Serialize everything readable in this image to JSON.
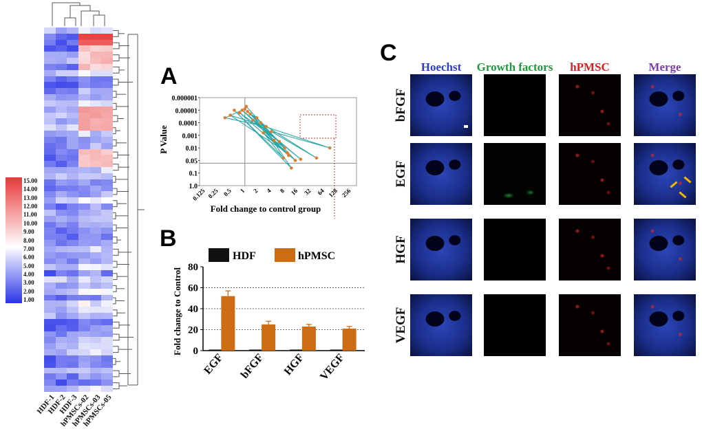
{
  "panels": {
    "a": "A",
    "b": "B",
    "c": "C"
  },
  "heatmap": {
    "samples": [
      "HDF-1",
      "HDF-2",
      "HDF-3",
      "hPMSCs-02",
      "hPMSCs-03",
      "hPMSCs-05"
    ],
    "legend_ticks": [
      "15.00",
      "14.00",
      "13.00",
      "12.00",
      "11.00",
      "10.00",
      "9.00",
      "8.00",
      "7.00",
      "6.00",
      "5.00",
      "4.00",
      "3.00",
      "2.00",
      "1.00"
    ],
    "colors": {
      "low": "#2a35e8",
      "mid": "#ffffff",
      "high": "#e83a3a"
    },
    "row_count": 60
  },
  "volcano": {
    "ylabel": "P Value",
    "xlabel": "Fold change to control group",
    "y_ticks": [
      "0.000001",
      "0.00001",
      "0.0001",
      "0.001",
      "0.01",
      "0.05",
      "0.1",
      "1.0"
    ],
    "x_ticks": [
      "0.125",
      "0.25",
      "0.5",
      "1",
      "2",
      "4",
      "8",
      "16",
      "32",
      "64",
      "128",
      "256"
    ],
    "line_color": "#2aa6a6",
    "point_color": "#e07b2a"
  },
  "chart_data": {
    "type": "bar",
    "title": "",
    "categories": [
      "EGF",
      "bFGF",
      "HGF",
      "VEGF"
    ],
    "series": [
      {
        "name": "HDF",
        "values": [
          1,
          1,
          1,
          1
        ],
        "errors": [
          0,
          0,
          0,
          0
        ],
        "color": "#111111"
      },
      {
        "name": "hPMSC",
        "values": [
          52,
          25,
          23,
          21
        ],
        "errors": [
          5,
          3,
          2,
          2
        ],
        "color": "#cc6d14"
      }
    ],
    "xlabel": "",
    "ylabel": "Fold change to Control",
    "ylim": [
      0,
      80
    ],
    "yticks": [
      0,
      20,
      40,
      60,
      80
    ],
    "grid": "dotted at 20, 40, 60",
    "legend": "top"
  },
  "microscopy": {
    "columns": [
      "Hoechst",
      "Growth factors",
      "hPMSC",
      "Merge"
    ],
    "column_colors": [
      "#2b3cd6",
      "#1e9a3a",
      "#d62020",
      "#7b3fa8"
    ],
    "rows": [
      "bFGF",
      "EGF",
      "HGF",
      "VEGF"
    ]
  }
}
